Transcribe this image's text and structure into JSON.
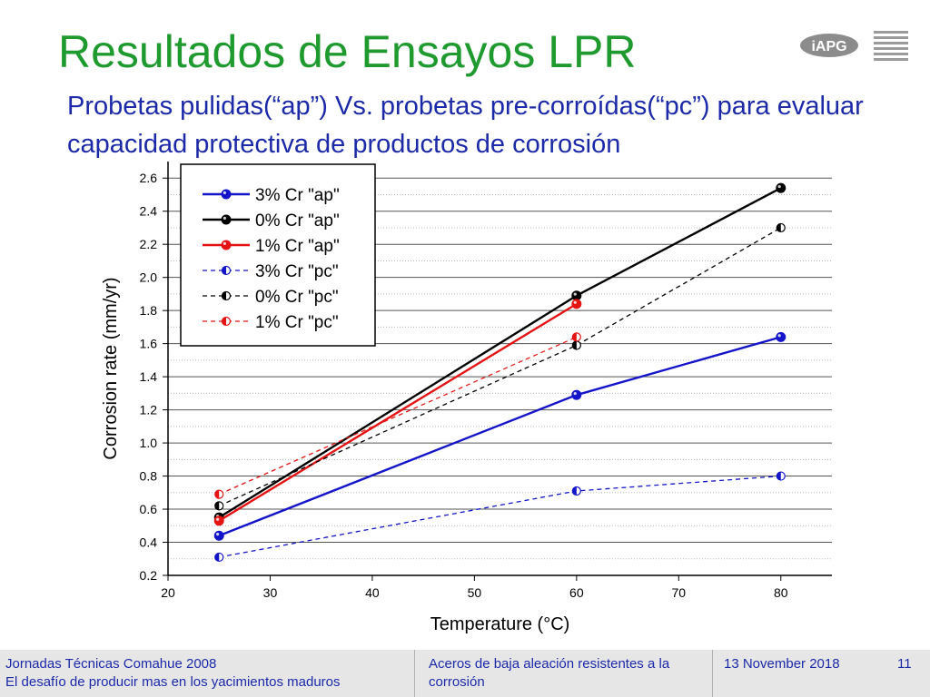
{
  "slide": {
    "title": "Resultados de Ensayos LPR",
    "subtitle": "Probetas pulidas(“ap”) Vs. probetas pre-corroídas(“pc”) para evaluar capacidad protectiva de productos de corrosión",
    "logo_text": "iAPG"
  },
  "footer": {
    "event_line1": "Jornadas Técnicas Comahue 2008",
    "event_line2": "El desafío de producir mas en los yacimientos maduros",
    "topic": "Aceros de baja aleación resistentes a la corrosión",
    "date": "13 November 2018",
    "page": "11"
  },
  "colors": {
    "title": "#1f9a2f",
    "subtitle": "#1c2aa8",
    "blue": "#1414c8",
    "black": "#000000",
    "red": "#e41414"
  },
  "chart_data": {
    "type": "line",
    "xlabel": "Temperature (°C)",
    "ylabel": "Corrosion rate (mm/yr)",
    "xlim": [
      20,
      85
    ],
    "ylim": [
      0.2,
      2.7
    ],
    "xticks": [
      20,
      30,
      40,
      50,
      60,
      70,
      80
    ],
    "yticks": [
      0.2,
      0.4,
      0.6,
      0.8,
      1.0,
      1.2,
      1.4,
      1.6,
      1.8,
      2.0,
      2.2,
      2.4,
      2.6
    ],
    "grid": true,
    "legend_position": "top-left",
    "series": [
      {
        "name": "3% Cr \"ap\"",
        "color": "#1414c8",
        "style": "solid",
        "marker": "full",
        "x": [
          25,
          60,
          80
        ],
        "y": [
          0.44,
          1.29,
          1.64
        ]
      },
      {
        "name": "0% Cr \"ap\"",
        "color": "#000000",
        "style": "solid",
        "marker": "full",
        "x": [
          25,
          60,
          80
        ],
        "y": [
          0.55,
          1.89,
          2.54
        ]
      },
      {
        "name": "1% Cr \"ap\"",
        "color": "#e41414",
        "style": "solid",
        "marker": "full",
        "x": [
          25,
          60
        ],
        "y": [
          0.53,
          1.84
        ]
      },
      {
        "name": "3% Cr \"pc\"",
        "color": "#1414c8",
        "style": "dashed",
        "marker": "half",
        "x": [
          25,
          60,
          80
        ],
        "y": [
          0.31,
          0.71,
          0.8
        ]
      },
      {
        "name": "0% Cr \"pc\"",
        "color": "#000000",
        "style": "dashed",
        "marker": "half",
        "x": [
          25,
          60,
          80
        ],
        "y": [
          0.62,
          1.59,
          2.3
        ]
      },
      {
        "name": "1% Cr \"pc\"",
        "color": "#e41414",
        "style": "dashed",
        "marker": "half",
        "x": [
          25,
          60
        ],
        "y": [
          0.69,
          1.64
        ]
      }
    ]
  }
}
